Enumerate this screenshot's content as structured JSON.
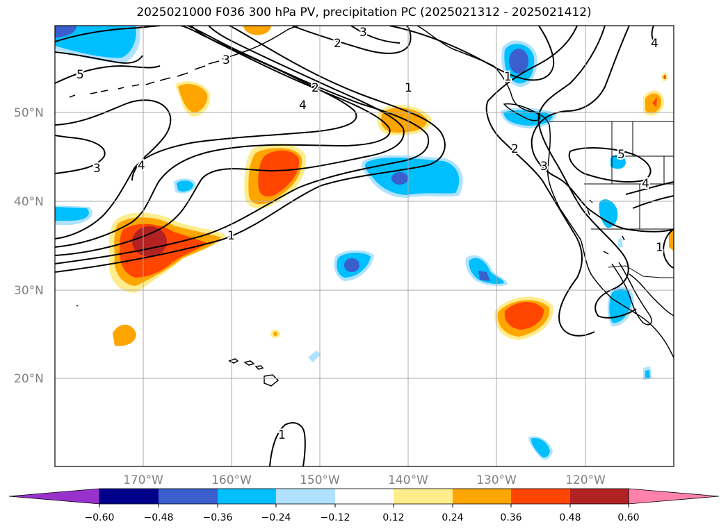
{
  "title": "2025021000 F036 300 hPa PV, precipitation PC (2025021312 - 2025021412)",
  "map": {
    "lat_labels": [
      "50°N",
      "40°N",
      "30°N",
      "20°N"
    ],
    "lon_labels": [
      "170°W",
      "160°W",
      "150°W",
      "140°W",
      "130°W",
      "120°W"
    ],
    "pv_contour_labels": [
      "5",
      "3",
      "4",
      "3",
      "2",
      "4",
      "2",
      "1",
      "3",
      "1",
      "1",
      "2",
      "3",
      "1",
      "4",
      "5",
      "4",
      "1"
    ]
  },
  "colorbar": {
    "ticks": [
      "−0.60",
      "−0.48",
      "−0.36",
      "−0.24",
      "−0.12",
      "0.12",
      "0.24",
      "0.36",
      "0.48",
      "0.60"
    ],
    "colors": [
      "#9932cc",
      "#00008b",
      "#3a5fcd",
      "#00bfff",
      "#b0e2ff",
      "#ffffff",
      "#ffec8b",
      "#ffa500",
      "#ff4500",
      "#b22222",
      "#ff82ab"
    ]
  }
}
